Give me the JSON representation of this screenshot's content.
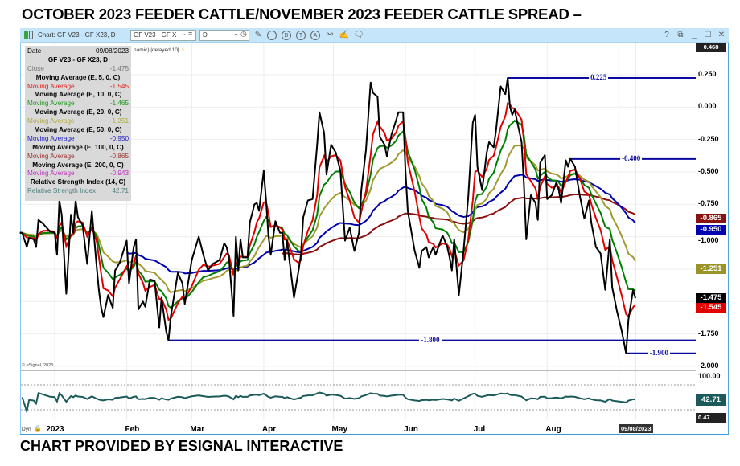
{
  "title": "OCTOBER 2023 FEEDER CATTLE/NOVEMBER 2023 FEEDER CATTLE SPREAD –",
  "footer": "CHART PROVIDED BY ESIGNAL INTERACTIVE",
  "toolbar": {
    "chart_title": "Chart: GF V23 - GF X23, D",
    "symbol_value": "GF V23 - GF X",
    "interval_value": "D",
    "help": "?",
    "minimize": "_",
    "close": "✕"
  },
  "feed_status": "namic) |delayed 10|",
  "copyright": "© eSignal, 2023",
  "legend": {
    "date_label": "Date",
    "date_value": "09/08/2023",
    "symbol": "GF V23 - GF X23, D",
    "close_label": "Close",
    "close_value": "-1.475",
    "rows": [
      {
        "head": "Moving Average (E, 5, 0, C)",
        "label": "Moving Average",
        "value": "-1.545",
        "color": "#e02020"
      },
      {
        "head": "Moving Average (E, 10, 0, C)",
        "label": "Moving Average",
        "value": "-1.465",
        "color": "#1e9a1e"
      },
      {
        "head": "Moving Average (E, 20, 0, C)",
        "label": "Moving Average",
        "value": "-1.251",
        "color": "#b0aa40"
      },
      {
        "head": "Moving Average (E, 50, 0, C)",
        "label": "Moving Average",
        "value": "-0.950",
        "color": "#2020c0"
      },
      {
        "head": "Moving Average (E, 100, 0, C)",
        "label": "Moving Average",
        "value": "-0.865",
        "color": "#a03030"
      },
      {
        "head": "Moving Average (E, 200, 0, C)",
        "label": "Moving Average",
        "value": "-0.943",
        "color": "#c030c0"
      },
      {
        "head": "Relative Strength Index (14, C)",
        "label": "Relative Strength Index",
        "value": "42.71",
        "color": "#4a8080"
      }
    ]
  },
  "chart_data": {
    "type": "line",
    "x_unit": "day of 2023 (0 = Jan 1)",
    "ylim": [
      -2.0,
      0.468
    ],
    "y_ticks": [
      "0.250",
      "0.000",
      "-0.250",
      "-0.500",
      "-0.750",
      "-1.000",
      "-1.750",
      "-2.000"
    ],
    "y_tick_values": [
      0.25,
      0,
      -0.25,
      -0.5,
      -0.75,
      -1.0,
      -1.75,
      -2.0
    ],
    "top_value": "0.468",
    "x_labels": [
      {
        "label": "2023",
        "day": -3
      },
      {
        "label": "Feb",
        "day": 31
      },
      {
        "label": "Mar",
        "day": 59
      },
      {
        "label": "Apr",
        "day": 90
      },
      {
        "label": "May",
        "day": 120
      },
      {
        "label": "Jun",
        "day": 151
      },
      {
        "label": "Jul",
        "day": 181
      },
      {
        "label": "Aug",
        "day": 212
      }
    ],
    "gridline_days": [
      0,
      31,
      59,
      90,
      120,
      151,
      181,
      212,
      243
    ],
    "current_date": "09/08/2023",
    "close": [
      [
        -15,
        -0.97
      ],
      [
        -14,
        -0.97
      ],
      [
        -12,
        -1.08
      ],
      [
        -11,
        -1.01
      ],
      [
        -9,
        -1.02
      ],
      [
        -8,
        -1.08
      ],
      [
        -7,
        -0.87
      ],
      [
        -5,
        -0.9
      ],
      [
        -2,
        -0.96
      ],
      [
        0,
        -0.97
      ],
      [
        1,
        -1.14
      ],
      [
        2,
        -0.72
      ],
      [
        3,
        -0.83
      ],
      [
        5,
        -1.44
      ],
      [
        7,
        -0.83
      ],
      [
        8,
        -0.97
      ],
      [
        9,
        -0.72
      ],
      [
        10,
        -0.85
      ],
      [
        12,
        -0.91
      ],
      [
        14,
        -1.21
      ],
      [
        16,
        -0.8
      ],
      [
        18,
        -1.22
      ],
      [
        19,
        -1.41
      ],
      [
        20,
        -1.55
      ],
      [
        21,
        -1.62
      ],
      [
        23,
        -1.45
      ],
      [
        25,
        -1.55
      ],
      [
        26,
        -1.26
      ],
      [
        28,
        -1.2
      ],
      [
        31,
        -1.03
      ],
      [
        32,
        -1.36
      ],
      [
        34,
        -1.08
      ],
      [
        35,
        -1.02
      ],
      [
        36,
        -1.56
      ],
      [
        38,
        -1.5
      ],
      [
        39,
        -1.54
      ],
      [
        41,
        -1.33
      ],
      [
        43,
        -1.34
      ],
      [
        45,
        -1.7
      ],
      [
        46,
        -1.47
      ],
      [
        48,
        -1.73
      ],
      [
        49,
        -1.8
      ],
      [
        50,
        -1.61
      ],
      [
        53,
        -1.28
      ],
      [
        55,
        -1.36
      ],
      [
        56,
        -1.52
      ],
      [
        59,
        -1.18
      ],
      [
        62,
        -1.0
      ],
      [
        64,
        -1.14
      ],
      [
        66,
        -1.26
      ],
      [
        68,
        -1.21
      ],
      [
        71,
        -1.18
      ],
      [
        73,
        -1.05
      ],
      [
        74,
        -1.08
      ],
      [
        75,
        -1.16
      ],
      [
        77,
        -1.61
      ],
      [
        78,
        -1.0
      ],
      [
        79,
        -1.26
      ],
      [
        80,
        -1.02
      ],
      [
        81,
        -1.16
      ],
      [
        83,
        -1.16
      ],
      [
        84,
        -0.89
      ],
      [
        86,
        -0.75
      ],
      [
        87,
        -0.74
      ],
      [
        88,
        -0.8
      ],
      [
        90,
        -0.49
      ],
      [
        91,
        -0.72
      ],
      [
        92,
        -0.99
      ],
      [
        93,
        -1.14
      ],
      [
        95,
        -0.88
      ],
      [
        97,
        -0.97
      ],
      [
        98,
        -0.97
      ],
      [
        99,
        -1.18
      ],
      [
        100,
        -1.03
      ],
      [
        103,
        -1.47
      ],
      [
        105,
        -1.26
      ],
      [
        106,
        -1.14
      ],
      [
        107,
        -0.85
      ],
      [
        109,
        -0.72
      ],
      [
        111,
        -0.71
      ],
      [
        113,
        -0.29
      ],
      [
        114,
        -0.04
      ],
      [
        116,
        -0.2
      ],
      [
        117,
        -0.52
      ],
      [
        119,
        -0.29
      ],
      [
        121,
        -0.35
      ],
      [
        123,
        -0.49
      ],
      [
        125,
        -1.03
      ],
      [
        127,
        -0.93
      ],
      [
        129,
        -1.11
      ],
      [
        131,
        -0.97
      ],
      [
        132,
        -0.64
      ],
      [
        134,
        -0.33
      ],
      [
        136,
        0.19
      ],
      [
        137,
        0.11
      ],
      [
        139,
        0.08
      ],
      [
        140,
        -0.23
      ],
      [
        142,
        -0.29
      ],
      [
        143,
        -0.38
      ],
      [
        145,
        -0.21
      ],
      [
        147,
        -0.1
      ],
      [
        148,
        -0.04
      ],
      [
        150,
        -0.04
      ],
      [
        151,
        -0.49
      ],
      [
        152,
        -0.8
      ],
      [
        155,
        -1.11
      ],
      [
        157,
        -1.24
      ],
      [
        158,
        -1.11
      ],
      [
        160,
        -1.08
      ],
      [
        161,
        -1.16
      ],
      [
        163,
        -1.08
      ],
      [
        164,
        -1.14
      ],
      [
        167,
        -0.99
      ],
      [
        169,
        -1.08
      ],
      [
        170,
        -1.16
      ],
      [
        171,
        -1.26
      ],
      [
        172,
        -1.02
      ],
      [
        174,
        -1.45
      ],
      [
        176,
        -1.11
      ],
      [
        178,
        -0.7
      ],
      [
        180,
        -0.12
      ],
      [
        181,
        -0.06
      ],
      [
        182,
        -0.46
      ],
      [
        184,
        -0.64
      ],
      [
        186,
        -0.35
      ],
      [
        187,
        -0.27
      ],
      [
        189,
        -0.31
      ],
      [
        190,
        -0.18
      ],
      [
        192,
        0.16
      ],
      [
        194,
        0.1
      ],
      [
        195,
        0.225
      ],
      [
        196,
        0.0
      ],
      [
        197,
        -0.06
      ],
      [
        198,
        -0.02
      ],
      [
        201,
        -0.27
      ],
      [
        202,
        -0.6
      ],
      [
        203,
        -1.02
      ],
      [
        205,
        -0.68
      ],
      [
        207,
        -0.74
      ],
      [
        208,
        -0.87
      ],
      [
        209,
        -0.43
      ],
      [
        211,
        -0.37
      ],
      [
        212,
        -0.71
      ],
      [
        214,
        -0.68
      ],
      [
        216,
        -0.58
      ],
      [
        217,
        -0.64
      ],
      [
        218,
        -0.74
      ],
      [
        220,
        -0.41
      ],
      [
        221,
        -0.46
      ],
      [
        222,
        -0.4
      ],
      [
        224,
        -0.46
      ],
      [
        226,
        -0.68
      ],
      [
        228,
        -0.86
      ],
      [
        230,
        -0.72
      ],
      [
        231,
        -0.89
      ],
      [
        233,
        -1.08
      ],
      [
        235,
        -1.13
      ],
      [
        237,
        -1.41
      ],
      [
        239,
        -1.02
      ],
      [
        240,
        -1.39
      ],
      [
        242,
        -1.57
      ],
      [
        244,
        -1.72
      ],
      [
        246,
        -1.9
      ],
      [
        247,
        -1.64
      ],
      [
        249,
        -1.41
      ],
      [
        250,
        -1.475
      ]
    ],
    "moving_averages": [
      {
        "name": "EMA 5",
        "period": 5,
        "color": "#e00000",
        "last": "-1.545",
        "tag_bg": "#e00000"
      },
      {
        "name": "EMA 10",
        "period": 10,
        "color": "#008000",
        "last": "-1.465"
      },
      {
        "name": "EMA 20",
        "period": 20,
        "color": "#a09a30",
        "last": "-1.251",
        "tag_bg": "#9a9428"
      },
      {
        "name": "EMA 50",
        "period": 50,
        "color": "#0000b0",
        "last": "-0.950",
        "tag_bg": "#0000b0",
        "start_day": 31,
        "seed": -1.1
      },
      {
        "name": "EMA 100",
        "period": 100,
        "color": "#8b1010",
        "last": "-0.865",
        "tag_bg": "#8b1010",
        "start_day": 98,
        "seed": -1.12
      }
    ],
    "close_tag": "-1.475",
    "levels": [
      {
        "value": 0.225,
        "label": "0.225",
        "from_day": 195
      },
      {
        "value": -0.4,
        "label": "-0.400",
        "from_day": 222
      },
      {
        "value": -1.8,
        "label": "-1.800",
        "from_day": 49
      },
      {
        "value": -1.9,
        "label": "-1.900",
        "from_day": 246
      }
    ],
    "rsi": {
      "period": 14,
      "last": "42.71",
      "top_label": "100.00",
      "bottom_label": "0.47",
      "color": "#1a5a5a"
    }
  },
  "date_axis": {
    "dyn": "Dyn"
  }
}
